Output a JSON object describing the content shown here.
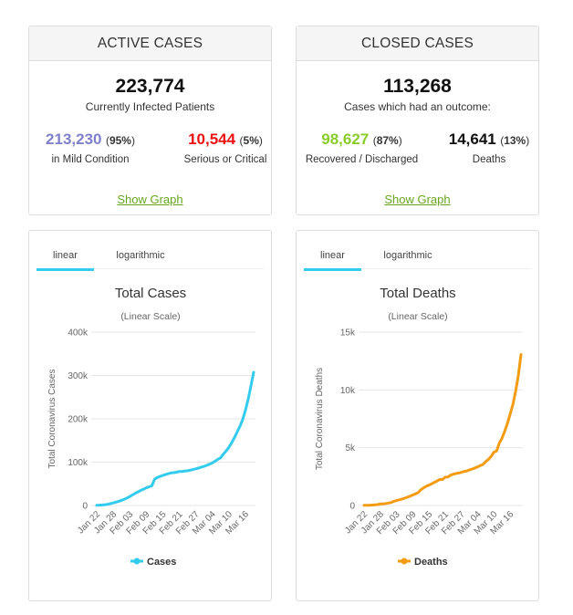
{
  "active": {
    "title": "ACTIVE CASES",
    "total": "223,774",
    "total_label": "Currently Infected Patients",
    "mild": {
      "num": "213,230",
      "pct_open": "(",
      "pct": "95%",
      "pct_close": ")",
      "label": "in Mild Condition",
      "color": "#8080cc"
    },
    "serious": {
      "num": "10,544",
      "pct_open": "(",
      "pct": "5%",
      "pct_close": ")",
      "label": "Serious or Critical",
      "color": "#ee1111"
    },
    "link": "Show Graph"
  },
  "closed": {
    "title": "CLOSED CASES",
    "total": "113,268",
    "total_label": "Cases which had an outcome:",
    "recovered": {
      "num": "98,627",
      "pct_open": "(",
      "pct": "87%",
      "pct_close": ")",
      "label": "Recovered / Discharged",
      "color": "#8acc28"
    },
    "deaths": {
      "num": "14,641",
      "pct_open": "(",
      "pct": "13%",
      "pct_close": ")",
      "label": "Deaths",
      "color": "#111111"
    },
    "link": "Show Graph"
  },
  "tabs": {
    "linear": "linear",
    "log": "logarithmic"
  },
  "chart_data": [
    {
      "type": "line",
      "title": "Total Cases",
      "subtitle": "(Linear Scale)",
      "ylabel": "Total Coronavirus Cases",
      "xlabel": "",
      "color": "#33ccee",
      "ylim": [
        0,
        400000
      ],
      "yticks": [
        0,
        100000,
        200000,
        300000,
        400000
      ],
      "ytick_labels": [
        "0",
        "100k",
        "200k",
        "300k",
        "400k"
      ],
      "xtick_labels": [
        "Jan 22",
        "Jan 28",
        "Feb 03",
        "Feb 09",
        "Feb 15",
        "Feb 21",
        "Feb 27",
        "Mar 04",
        "Mar 10",
        "Mar 16"
      ],
      "legend": "bottom-center",
      "series": [
        {
          "name": "Cases",
          "values": [
            580,
            850,
            1300,
            2000,
            2800,
            4500,
            6000,
            7700,
            9700,
            11900,
            14500,
            17300,
            20600,
            24500,
            28300,
            31500,
            34900,
            37600,
            40600,
            43100,
            45200,
            60400,
            64600,
            67100,
            69300,
            71300,
            73400,
            75200,
            75700,
            76800,
            78600,
            78600,
            79400,
            80300,
            81500,
            83100,
            84600,
            86600,
            88600,
            90400,
            92900,
            95300,
            98400,
            102400,
            106500,
            110200,
            118600,
            125800,
            134100,
            144700,
            156400,
            169400,
            182400,
            198100,
            218900,
            245300,
            275600,
            307300
          ]
        }
      ]
    },
    {
      "type": "line",
      "title": "Total Deaths",
      "subtitle": "(Linear Scale)",
      "ylabel": "Total Coronavirus Deaths",
      "xlabel": "",
      "color": "#f39c12",
      "ylim": [
        0,
        15000
      ],
      "yticks": [
        0,
        5000,
        10000,
        15000
      ],
      "ytick_labels": [
        "0",
        "5k",
        "10k",
        "15k"
      ],
      "xtick_labels": [
        "Jan 22",
        "Jan 28",
        "Feb 03",
        "Feb 09",
        "Feb 15",
        "Feb 21",
        "Feb 27",
        "Mar 04",
        "Mar 10",
        "Mar 16"
      ],
      "legend": "bottom-center",
      "series": [
        {
          "name": "Deaths",
          "values": [
            17,
            18,
            26,
            42,
            56,
            82,
            131,
            133,
            171,
            213,
            259,
            362,
            426,
            492,
            564,
            634,
            719,
            806,
            906,
            1013,
            1113,
            1371,
            1523,
            1666,
            1770,
            1868,
            2007,
            2122,
            2247,
            2251,
            2458,
            2469,
            2629,
            2708,
            2770,
            2814,
            2872,
            2941,
            2996,
            3085,
            3160,
            3254,
            3348,
            3460,
            3558,
            3802,
            3988,
            4262,
            4615,
            4720,
            5404,
            5819,
            6440,
            7126,
            7905,
            8733,
            9867,
            11201,
            13069
          ]
        }
      ]
    }
  ]
}
